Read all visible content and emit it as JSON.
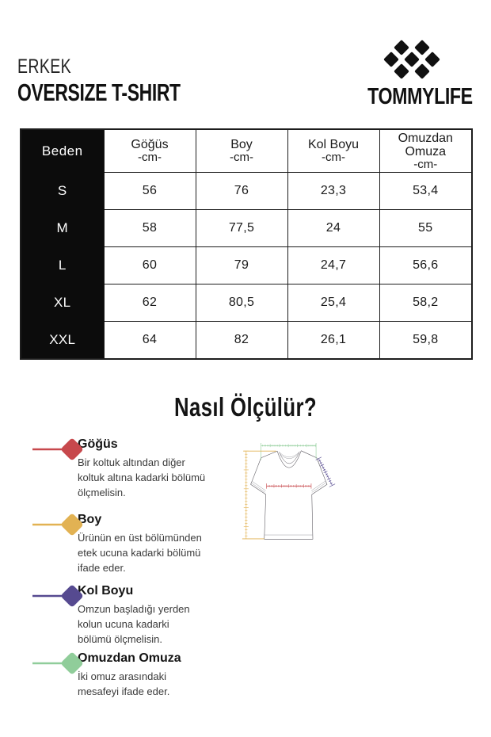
{
  "header": {
    "category": "ERKEK",
    "product_title": "OVERSIZE T-SHIRT",
    "brand": "TOMMYLIFE",
    "logo_icon": "diamond-cluster-logo"
  },
  "size_table": {
    "corner_label": "Beden",
    "columns": [
      {
        "label": "Göğüs",
        "unit": "-cm-"
      },
      {
        "label": "Boy",
        "unit": "-cm-"
      },
      {
        "label": "Kol Boyu",
        "unit": "-cm-"
      },
      {
        "label": "Omuzdan Omuza",
        "unit": "-cm-"
      }
    ],
    "rows": [
      {
        "size": "S",
        "values": [
          "56",
          "76",
          "23,3",
          "53,4"
        ]
      },
      {
        "size": "M",
        "values": [
          "58",
          "77,5",
          "24",
          "55"
        ]
      },
      {
        "size": "L",
        "values": [
          "60",
          "79",
          "24,7",
          "56,6"
        ]
      },
      {
        "size": "XL",
        "values": [
          "62",
          "80,5",
          "25,4",
          "58,2"
        ]
      },
      {
        "size": "XXL",
        "values": [
          "64",
          "82",
          "26,1",
          "59,8"
        ]
      }
    ]
  },
  "measure": {
    "title": "Nasıl Ölçülür?",
    "items": [
      {
        "name": "Göğüs",
        "icon": "diamond-pin-icon",
        "color": "#c7484c",
        "description": "Bir koltuk altından diğer\nkoltuk altına kadarki bölümü\nölçmelisin."
      },
      {
        "name": "Boy",
        "icon": "diamond-pin-icon",
        "color": "#e2b253",
        "description": "Ürünün en üst bölümünden\netek ucuna kadarki bölümü\nifade eder."
      },
      {
        "name": "Kol Boyu",
        "icon": "diamond-pin-icon",
        "color": "#564a90",
        "description": "Omzun başladığı yerden\nkolun ucuna kadarki\nbölümü ölçmelisin."
      },
      {
        "name": "Omuzdan Omuza",
        "icon": "diamond-pin-icon",
        "color": "#90cd9a",
        "description": "İki omuz arasındaki\nmesafeyi ifade eder."
      }
    ]
  },
  "colors": {
    "ink": "#111111",
    "table_border": "#1d1d1d",
    "shirt_outline": "#58555c",
    "shirt_detail": "#8d8d93"
  }
}
